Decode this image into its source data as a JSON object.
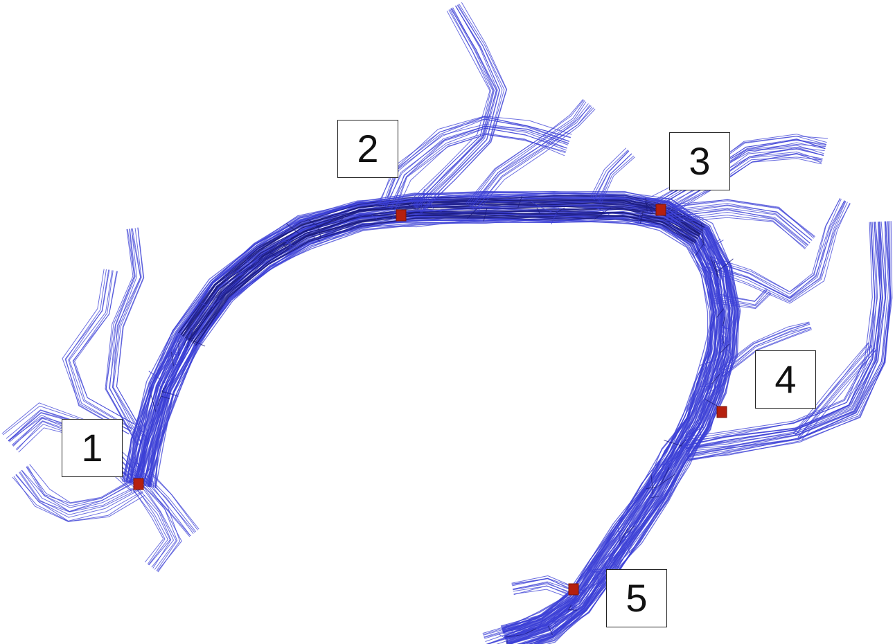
{
  "figure": {
    "fiber_color": "#3b3fd6",
    "fiber_dark_color": "#1a1a7a",
    "marker_color": "#b5200e",
    "labels": [
      "1",
      "2",
      "3",
      "4",
      "5"
    ]
  }
}
